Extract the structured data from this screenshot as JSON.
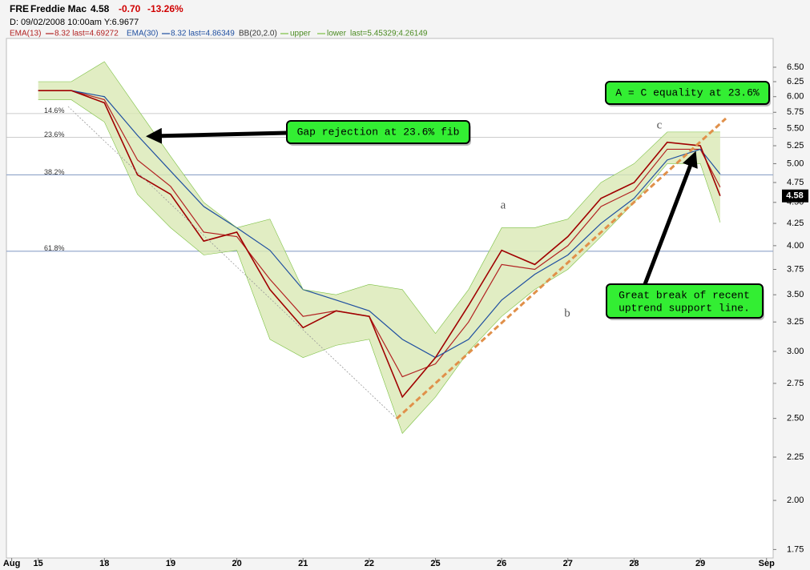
{
  "chart_data": {
    "type": "line",
    "symbol": "FRE",
    "company": "Freddie Mac",
    "last": "4.58",
    "change": "-0.70",
    "change_pct": "-13.26%",
    "date_line": "D: 09/02/2008 10:00am Y:6.9677",
    "log_scale": true,
    "xlim": [
      -0.48,
      11.1
    ],
    "ylim": [
      1.71,
      7.03
    ],
    "xticks": [
      {
        "value": -0.4,
        "label": "Aug"
      },
      {
        "value": 0,
        "label": "15"
      },
      {
        "value": 1,
        "label": "18"
      },
      {
        "value": 2,
        "label": "19"
      },
      {
        "value": 3,
        "label": "20"
      },
      {
        "value": 4,
        "label": "21"
      },
      {
        "value": 5,
        "label": "22"
      },
      {
        "value": 6,
        "label": "25"
      },
      {
        "value": 7,
        "label": "26"
      },
      {
        "value": 8,
        "label": "27"
      },
      {
        "value": 9,
        "label": "28"
      },
      {
        "value": 10,
        "label": "29"
      },
      {
        "value": 11,
        "label": "Sep"
      }
    ],
    "yticks": [
      {
        "value": 6.5,
        "label": "6.50"
      },
      {
        "value": 6.25,
        "label": "6.25"
      },
      {
        "value": 6,
        "label": "6.00"
      },
      {
        "value": 5.75,
        "label": "5.75"
      },
      {
        "value": 5.5,
        "label": "5.50"
      },
      {
        "value": 5.25,
        "label": "5.25"
      },
      {
        "value": 5,
        "label": "5.00"
      },
      {
        "value": 4.75,
        "label": "4.75"
      },
      {
        "value": 4.5,
        "label": "4.50"
      },
      {
        "value": 4.25,
        "label": "4.25"
      },
      {
        "value": 4,
        "label": "4.00"
      },
      {
        "value": 3.75,
        "label": "3.75"
      },
      {
        "value": 3.5,
        "label": "3.50"
      },
      {
        "value": 3.25,
        "label": "3.25"
      },
      {
        "value": 3,
        "label": "3.00"
      },
      {
        "value": 2.75,
        "label": "2.75"
      },
      {
        "value": 2.5,
        "label": "2.50"
      },
      {
        "value": 2.25,
        "label": "2.25"
      },
      {
        "value": 2,
        "label": "2.00"
      },
      {
        "value": 1.75,
        "label": "1.75"
      }
    ],
    "x": [
      0,
      0.5,
      1,
      1.5,
      2,
      2.5,
      3,
      3.5,
      4,
      4.5,
      5,
      5.5,
      6,
      6.5,
      7,
      7.5,
      8,
      8.5,
      9,
      9.5,
      10,
      10.3
    ],
    "color": "#a00000",
    "values": [
      6.1,
      6.1,
      5.9,
      4.85,
      4.6,
      4.05,
      4.15,
      3.55,
      3.2,
      3.35,
      3.3,
      2.65,
      2.95,
      3.4,
      3.95,
      3.8,
      4.1,
      4.55,
      4.75,
      5.3,
      5.25,
      4.58
    ],
    "series": [
      {
        "name": "EMA(13)",
        "color": "#b22222",
        "note": "8.32 last=4.69272",
        "values": [
          6.1,
          6.1,
          5.95,
          5.05,
          4.7,
          4.15,
          4.1,
          3.65,
          3.3,
          3.35,
          3.3,
          2.8,
          2.9,
          3.25,
          3.8,
          3.75,
          4.0,
          4.45,
          4.65,
          5.2,
          5.2,
          4.69
        ]
      },
      {
        "name": "EMA(30)",
        "color": "#1f4fa0",
        "note": "8.32 last=4.86349",
        "values": [
          6.1,
          6.1,
          6.0,
          5.4,
          4.9,
          4.45,
          4.2,
          3.95,
          3.55,
          3.45,
          3.35,
          3.1,
          2.95,
          3.1,
          3.45,
          3.7,
          3.9,
          4.25,
          4.55,
          5.05,
          5.2,
          4.86
        ]
      },
      {
        "name": "upper",
        "color": "#7cc043",
        "values": [
          6.25,
          6.25,
          6.6,
          5.8,
          5.1,
          4.5,
          4.2,
          4.3,
          3.55,
          3.5,
          3.6,
          3.55,
          3.15,
          3.55,
          4.2,
          4.2,
          4.3,
          4.75,
          5.0,
          5.45,
          5.45,
          5.45
        ]
      },
      {
        "name": "lower",
        "color": "#7cc043",
        "values": [
          5.95,
          5.95,
          5.6,
          4.6,
          4.2,
          3.9,
          3.95,
          3.1,
          2.95,
          3.05,
          3.1,
          2.4,
          2.65,
          3.0,
          3.3,
          3.55,
          3.75,
          4.1,
          4.5,
          5.0,
          5.0,
          4.26
        ]
      }
    ],
    "band_label": "BB(20,2.0)",
    "band_note": "last=5.45329;4.26149",
    "fib_levels": [
      {
        "label": "14.6%",
        "value": 5.73
      },
      {
        "label": "23.6%",
        "value": 5.37
      },
      {
        "label": "38.2%",
        "value": 4.85
      },
      {
        "label": "61.8%",
        "value": 3.94
      }
    ],
    "annotations": {
      "gap": "Gap rejection at 23.6% fib",
      "equality": "A = C equality at 23.6%",
      "break": [
        "Great break of recent",
        "uptrend support line."
      ],
      "a": "a",
      "b": "b",
      "c": "c"
    }
  }
}
